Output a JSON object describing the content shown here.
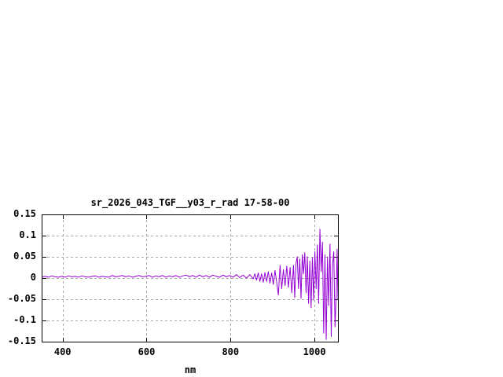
{
  "chart_data": {
    "type": "line",
    "title": "sr_2026_043_TGF__y03_r_rad 17-58-00",
    "xlabel": "nm",
    "ylabel": "",
    "xlim": [
      350,
      1056
    ],
    "ylim": [
      -0.15,
      0.15
    ],
    "grid": true,
    "legend": "none",
    "x_ticks": [
      {
        "v": 400,
        "label": "400"
      },
      {
        "v": 600,
        "label": "600"
      },
      {
        "v": 800,
        "label": "800"
      },
      {
        "v": 1000,
        "label": "1000"
      }
    ],
    "y_ticks": [
      {
        "v": 0.15,
        "label": "0.15"
      },
      {
        "v": 0.1,
        "label": "0.1"
      },
      {
        "v": 0.05,
        "label": "0.05"
      },
      {
        "v": 0,
        "label": "0"
      },
      {
        "v": -0.05,
        "label": "-0.05"
      },
      {
        "v": -0.1,
        "label": "-0.1"
      },
      {
        "v": -0.15,
        "label": "-0.15"
      }
    ],
    "colors": {
      "line": "#9400d3",
      "grid": "#a8a8a8",
      "axis": "#000000",
      "background": "#ffffff",
      "text": "#000000"
    },
    "series": [
      {
        "name": "sr_2026_043_TGF__y03_r_rad",
        "points": [
          [
            350,
            0.002
          ],
          [
            358,
            0.004
          ],
          [
            366,
            0.002
          ],
          [
            374,
            0.005
          ],
          [
            382,
            0.003
          ],
          [
            390,
            0.002
          ],
          [
            398,
            0.004
          ],
          [
            406,
            0.002
          ],
          [
            414,
            0.005
          ],
          [
            422,
            0.003
          ],
          [
            430,
            0.004
          ],
          [
            438,
            0.002
          ],
          [
            446,
            0.005
          ],
          [
            454,
            0.003
          ],
          [
            462,
            0.002
          ],
          [
            470,
            0.004
          ],
          [
            478,
            0.005
          ],
          [
            486,
            0.002
          ],
          [
            494,
            0.004
          ],
          [
            502,
            0.003
          ],
          [
            510,
            0.002
          ],
          [
            518,
            0.006
          ],
          [
            526,
            0.003
          ],
          [
            534,
            0.004
          ],
          [
            542,
            0.006
          ],
          [
            550,
            0.003
          ],
          [
            558,
            0.005
          ],
          [
            566,
            0.002
          ],
          [
            574,
            0.004
          ],
          [
            582,
            0.006
          ],
          [
            590,
            0.003
          ],
          [
            598,
            0.004
          ],
          [
            606,
            0.006
          ],
          [
            614,
            0.002
          ],
          [
            622,
            0.005
          ],
          [
            630,
            0.003
          ],
          [
            638,
            0.006
          ],
          [
            646,
            0.002
          ],
          [
            654,
            0.005
          ],
          [
            662,
            0.003
          ],
          [
            670,
            0.006
          ],
          [
            678,
            0.002
          ],
          [
            686,
            0.005
          ],
          [
            694,
            0.007
          ],
          [
            702,
            0.003
          ],
          [
            710,
            0.006
          ],
          [
            718,
            0.002
          ],
          [
            726,
            0.007
          ],
          [
            734,
            0.003
          ],
          [
            742,
            0.006
          ],
          [
            750,
            0.002
          ],
          [
            758,
            0.007
          ],
          [
            766,
            0.004
          ],
          [
            774,
            0.002
          ],
          [
            782,
            0.007
          ],
          [
            790,
            0.003
          ],
          [
            798,
            0.006
          ],
          [
            806,
            0.002
          ],
          [
            814,
            0.008
          ],
          [
            822,
            0.001
          ],
          [
            830,
            0.007
          ],
          [
            838,
            0.0
          ],
          [
            846,
            0.008
          ],
          [
            854,
            -0.002
          ],
          [
            858,
            0.01
          ],
          [
            862,
            -0.005
          ],
          [
            866,
            0.012
          ],
          [
            870,
            -0.008
          ],
          [
            874,
            0.01
          ],
          [
            878,
            -0.01
          ],
          [
            882,
            0.013
          ],
          [
            886,
            -0.008
          ],
          [
            890,
            0.015
          ],
          [
            894,
            -0.012
          ],
          [
            898,
            0.012
          ],
          [
            902,
            -0.015
          ],
          [
            906,
            0.018
          ],
          [
            910,
            -0.01
          ],
          [
            914,
            -0.04
          ],
          [
            918,
            0.03
          ],
          [
            922,
            -0.025
          ],
          [
            926,
            0.02
          ],
          [
            930,
            -0.018
          ],
          [
            934,
            0.028
          ],
          [
            938,
            -0.022
          ],
          [
            942,
            0.025
          ],
          [
            946,
            -0.035
          ],
          [
            950,
            0.03
          ],
          [
            953,
            -0.046
          ],
          [
            956,
            0.035
          ],
          [
            959,
            0.05
          ],
          [
            962,
            -0.025
          ],
          [
            965,
            0.045
          ],
          [
            968,
            -0.048
          ],
          [
            971,
            0.055
          ],
          [
            974,
            0.01
          ],
          [
            977,
            0.06
          ],
          [
            980,
            -0.035
          ],
          [
            983,
            0.05
          ],
          [
            986,
            -0.06
          ],
          [
            989,
            0.04
          ],
          [
            992,
            -0.07
          ],
          [
            995,
            0.048
          ],
          [
            998,
            -0.052
          ],
          [
            1001,
            0.062
          ],
          [
            1004,
            -0.025
          ],
          [
            1007,
            0.078
          ],
          [
            1010,
            -0.06
          ],
          [
            1013,
            0.115
          ],
          [
            1016,
            0.015
          ],
          [
            1019,
            0.085
          ],
          [
            1022,
            -0.13
          ],
          [
            1025,
            0.055
          ],
          [
            1028,
            -0.145
          ],
          [
            1031,
            0.05
          ],
          [
            1034,
            -0.065
          ],
          [
            1037,
            0.08
          ],
          [
            1040,
            -0.138
          ],
          [
            1043,
            0.03
          ],
          [
            1046,
            0.062
          ],
          [
            1049,
            -0.115
          ],
          [
            1052,
            -0.04
          ],
          [
            1054,
            0.068
          ],
          [
            1056,
            -0.05
          ]
        ]
      }
    ]
  }
}
